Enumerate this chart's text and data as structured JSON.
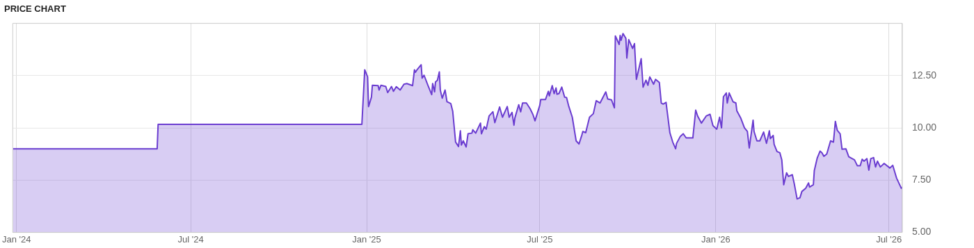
{
  "chart_data": {
    "type": "area",
    "title": "PRICE CHART",
    "x": [
      "2023-12-28",
      "2024-05-27",
      "2024-05-28",
      "2024-12-27",
      "2024-12-30",
      "2025-01-02",
      "2025-01-03",
      "2025-01-06",
      "2025-01-07",
      "2025-01-13",
      "2025-01-14",
      "2025-01-16",
      "2025-01-21",
      "2025-01-23",
      "2025-01-27",
      "2025-01-29",
      "2025-02-01",
      "2025-02-05",
      "2025-02-09",
      "2025-02-12",
      "2025-02-18",
      "2025-02-20",
      "2025-02-21",
      "2025-02-23",
      "2025-02-27",
      "2025-02-28",
      "2025-03-02",
      "2025-03-06",
      "2025-03-10",
      "2025-03-11",
      "2025-03-13",
      "2025-03-14",
      "2025-03-16",
      "2025-03-18",
      "2025-03-19",
      "2025-03-21",
      "2025-03-24",
      "2025-03-26",
      "2025-03-30",
      "2025-04-01",
      "2025-04-04",
      "2025-04-07",
      "2025-04-09",
      "2025-04-10",
      "2025-04-12",
      "2025-04-15",
      "2025-04-17",
      "2025-04-21",
      "2025-04-22",
      "2025-04-25",
      "2025-04-30",
      "2025-05-01",
      "2025-05-04",
      "2025-05-06",
      "2025-05-09",
      "2025-05-13",
      "2025-05-15",
      "2025-05-20",
      "2025-05-23",
      "2025-05-28",
      "2025-05-30",
      "2025-06-02",
      "2025-06-04",
      "2025-06-05",
      "2025-06-09",
      "2025-06-11",
      "2025-06-13",
      "2025-06-17",
      "2025-06-21",
      "2025-06-24",
      "2025-06-26",
      "2025-07-01",
      "2025-07-02",
      "2025-07-07",
      "2025-07-10",
      "2025-07-11",
      "2025-07-14",
      "2025-07-16",
      "2025-07-18",
      "2025-07-19",
      "2025-07-21",
      "2025-07-24",
      "2025-07-27",
      "2025-07-29",
      "2025-07-31",
      "2025-08-04",
      "2025-08-08",
      "2025-08-11",
      "2025-08-14",
      "2025-08-15",
      "2025-08-18",
      "2025-08-22",
      "2025-08-26",
      "2025-08-29",
      "2025-09-02",
      "2025-09-08",
      "2025-09-10",
      "2025-09-14",
      "2025-09-17",
      "2025-09-18",
      "2025-09-22",
      "2025-09-23",
      "2025-09-24",
      "2025-09-26",
      "2025-09-29",
      "2025-09-30",
      "2025-10-02",
      "2025-10-06",
      "2025-10-08",
      "2025-10-10",
      "2025-10-15",
      "2025-10-17",
      "2025-10-20",
      "2025-10-22",
      "2025-10-24",
      "2025-10-28",
      "2025-10-30",
      "2025-11-03",
      "2025-11-05",
      "2025-11-07",
      "2025-11-10",
      "2025-11-14",
      "2025-11-17",
      "2025-11-20",
      "2025-11-21",
      "2025-11-25",
      "2025-11-28",
      "2025-12-01",
      "2025-12-08",
      "2025-12-11",
      "2025-12-13",
      "2025-12-17",
      "2025-12-22",
      "2025-12-26",
      "2025-12-29",
      "2026-01-02",
      "2026-01-05",
      "2026-01-07",
      "2026-01-09",
      "2026-01-12",
      "2026-01-13",
      "2026-01-15",
      "2026-01-19",
      "2026-01-22",
      "2026-01-23",
      "2026-01-27",
      "2026-01-31",
      "2026-02-03",
      "2026-02-05",
      "2026-02-09",
      "2026-02-10",
      "2026-02-13",
      "2026-02-16",
      "2026-02-20",
      "2026-02-23",
      "2026-02-26",
      "2026-02-27",
      "2026-03-02",
      "2026-03-03",
      "2026-03-06",
      "2026-03-09",
      "2026-03-11",
      "2026-03-13",
      "2026-03-16",
      "2026-03-18",
      "2026-03-22",
      "2026-03-24",
      "2026-03-27",
      "2026-03-30",
      "2026-04-01",
      "2026-04-05",
      "2026-04-08",
      "2026-04-09",
      "2026-04-13",
      "2026-04-14",
      "2026-04-17",
      "2026-04-20",
      "2026-04-22",
      "2026-04-24",
      "2026-04-27",
      "2026-05-01",
      "2026-05-04",
      "2026-05-06",
      "2026-05-08",
      "2026-05-11",
      "2026-05-13",
      "2026-05-17",
      "2026-05-20",
      "2026-05-26",
      "2026-05-29",
      "2026-06-01",
      "2026-06-03",
      "2026-06-05",
      "2026-06-08",
      "2026-06-10",
      "2026-06-12",
      "2026-06-15",
      "2026-06-17",
      "2026-06-19",
      "2026-06-22",
      "2026-06-26",
      "2026-07-02",
      "2026-07-05",
      "2026-07-09",
      "2026-07-14",
      "2026-07-15"
    ],
    "series": [
      {
        "color": "#6a3cd0",
        "values": [
          9.0,
          9.0,
          10.17,
          10.17,
          12.78,
          12.44,
          11.02,
          11.47,
          12.04,
          12.02,
          11.81,
          12.04,
          11.98,
          11.69,
          11.98,
          11.75,
          11.97,
          11.81,
          12.09,
          12.12,
          12.02,
          12.78,
          12.66,
          12.8,
          13.02,
          12.38,
          12.52,
          12.04,
          11.59,
          12.12,
          11.72,
          12.2,
          12.28,
          12.68,
          11.81,
          11.42,
          11.81,
          11.25,
          11.16,
          10.79,
          9.32,
          9.11,
          9.86,
          9.18,
          9.38,
          9.09,
          9.72,
          9.75,
          9.91,
          9.75,
          10.23,
          9.72,
          10.06,
          9.94,
          10.57,
          10.77,
          10.25,
          11.0,
          10.51,
          11.02,
          10.51,
          10.74,
          10.13,
          10.48,
          11.11,
          10.77,
          11.19,
          11.19,
          10.91,
          10.62,
          10.34,
          11.08,
          11.36,
          11.36,
          11.75,
          11.53,
          12.02,
          11.64,
          11.91,
          11.61,
          11.64,
          11.95,
          11.47,
          11.45,
          11.08,
          10.51,
          9.38,
          9.23,
          9.66,
          9.83,
          9.77,
          10.51,
          10.68,
          11.3,
          11.19,
          11.72,
          11.38,
          11.34,
          10.96,
          14.4,
          13.99,
          14.42,
          14.19,
          14.51,
          14.28,
          13.34,
          14.22,
          13.8,
          14.03,
          12.32,
          13.31,
          11.95,
          12.28,
          12.04,
          12.44,
          12.09,
          12.32,
          12.17,
          11.19,
          11.14,
          11.22,
          9.77,
          9.32,
          9.0,
          9.26,
          9.6,
          9.72,
          9.52,
          9.52,
          10.85,
          10.57,
          10.23,
          10.57,
          10.65,
          10.11,
          9.94,
          10.51,
          10.0,
          11.49,
          11.67,
          11.19,
          11.67,
          11.25,
          11.19,
          10.82,
          10.48,
          10.0,
          9.83,
          9.04,
          10.37,
          9.83,
          9.38,
          9.38,
          9.8,
          9.26,
          9.86,
          9.49,
          9.64,
          9.21,
          8.87,
          8.81,
          8.47,
          7.28,
          7.85,
          7.68,
          7.76,
          7.34,
          6.6,
          6.66,
          6.96,
          7.11,
          7.37,
          7.17,
          7.28,
          7.96,
          8.55,
          8.89,
          8.81,
          8.64,
          8.75,
          9.38,
          9.32,
          10.31,
          9.88,
          9.72,
          8.98,
          9.0,
          8.62,
          8.47,
          8.19,
          8.19,
          8.5,
          8.41,
          8.53,
          7.98,
          8.53,
          8.58,
          8.13,
          8.41,
          8.13,
          8.3,
          8.08,
          8.21,
          7.6,
          7.11,
          7.17
        ]
      }
    ],
    "xlim": [
      "2023-12-28",
      "2026-07-15"
    ],
    "xticks": [
      {
        "value": "2024-01-01",
        "label": "Jan '24"
      },
      {
        "value": "2024-07-01",
        "label": "Jul '24"
      },
      {
        "value": "2025-01-01",
        "label": "Jan '25"
      },
      {
        "value": "2025-07-01",
        "label": "Jul '25"
      },
      {
        "value": "2026-01-01",
        "label": "Jan '26"
      },
      {
        "value": "2026-07-01",
        "label": "Jul '26"
      }
    ],
    "ylim": [
      5,
      15
    ],
    "yticks": [
      {
        "value": 5,
        "label": "5.00"
      },
      {
        "value": 7.5,
        "label": "7.50"
      },
      {
        "value": 10,
        "label": "10.00"
      },
      {
        "value": 12.5,
        "label": "12.50"
      }
    ],
    "grid": true
  }
}
